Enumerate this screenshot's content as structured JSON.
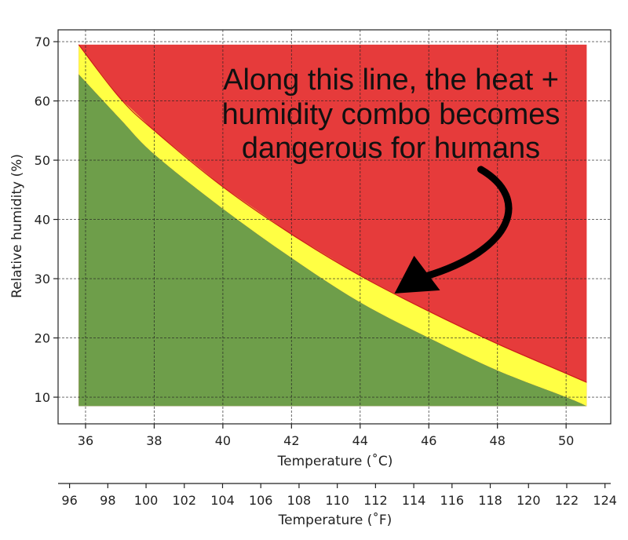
{
  "chart_data": {
    "type": "area",
    "xlabel": "Temperature ( $^\\circ$C)",
    "xlabel_display": "Temperature (˚C)",
    "ylabel": "Relative humidity (%)",
    "secondary_xlabel": "Temperature (˚F)",
    "xlim": [
      35.2,
      51.3
    ],
    "ylim": [
      5.5,
      72
    ],
    "secondary_xlim": [
      95.4,
      124.3
    ],
    "x_ticks": [
      36,
      38,
      40,
      42,
      44,
      46,
      48,
      50
    ],
    "y_ticks": [
      10,
      20,
      30,
      40,
      50,
      60,
      70
    ],
    "secondary_x_ticks": [
      96,
      98,
      100,
      102,
      104,
      106,
      108,
      110,
      112,
      114,
      116,
      118,
      120,
      122,
      124
    ],
    "grid": true,
    "data_extent": {
      "x": [
        35.8,
        50.6
      ],
      "y": [
        8.5,
        69.5
      ]
    },
    "series": [
      {
        "name": "",
        "role": "upper boundary (red region above)",
        "color": "#e63b3b",
        "x": [
          35.8,
          37,
          38,
          40,
          42,
          44,
          46,
          48,
          50,
          50.6
        ],
        "y": [
          69.5,
          60.5,
          55,
          45.5,
          37.5,
          30.5,
          24.5,
          19,
          14,
          12.5
        ]
      },
      {
        "name": "",
        "role": "lower boundary (green region below)",
        "color": "#6e9e4a",
        "x": [
          35.8,
          37,
          38,
          40,
          42,
          44,
          46,
          48,
          50,
          50.6
        ],
        "y": [
          64.5,
          57,
          51,
          41.8,
          33.5,
          26,
          20,
          14.5,
          10,
          8.5
        ]
      }
    ],
    "band_color": "#ffff44",
    "annotation": {
      "lines": [
        "Along this line, the heat +",
        "humidity combo becomes",
        "dangerous for humans"
      ],
      "arrow_target": {
        "x": 45.0,
        "y": 27.5
      }
    }
  }
}
